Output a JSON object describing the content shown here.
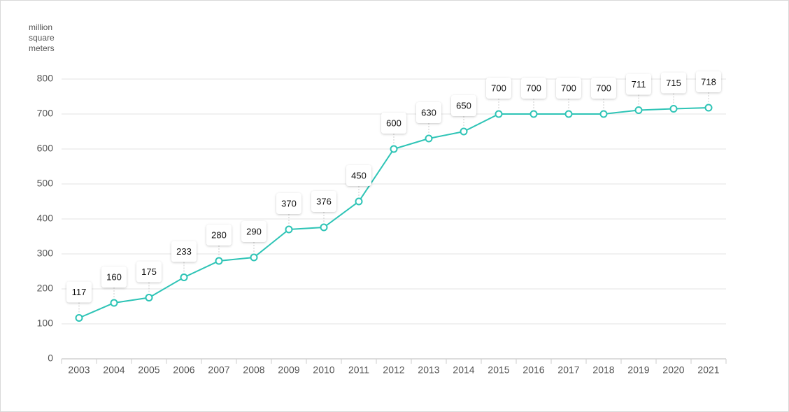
{
  "chart_data": {
    "type": "line",
    "y_axis_label": "million square meters",
    "categories": [
      "2003",
      "2004",
      "2005",
      "2006",
      "2007",
      "2008",
      "2009",
      "2010",
      "2011",
      "2012",
      "2013",
      "2014",
      "2015",
      "2016",
      "2017",
      "2018",
      "2019",
      "2020",
      "2021"
    ],
    "values": [
      117,
      160,
      175,
      233,
      280,
      290,
      370,
      376,
      450,
      600,
      630,
      650,
      700,
      700,
      700,
      700,
      711,
      715,
      718
    ],
    "color": "#2ec4b6",
    "ylim": [
      0,
      800
    ],
    "yticks": [
      0,
      100,
      200,
      300,
      400,
      500,
      600,
      700,
      800
    ],
    "grid": true,
    "data_labels": true
  }
}
